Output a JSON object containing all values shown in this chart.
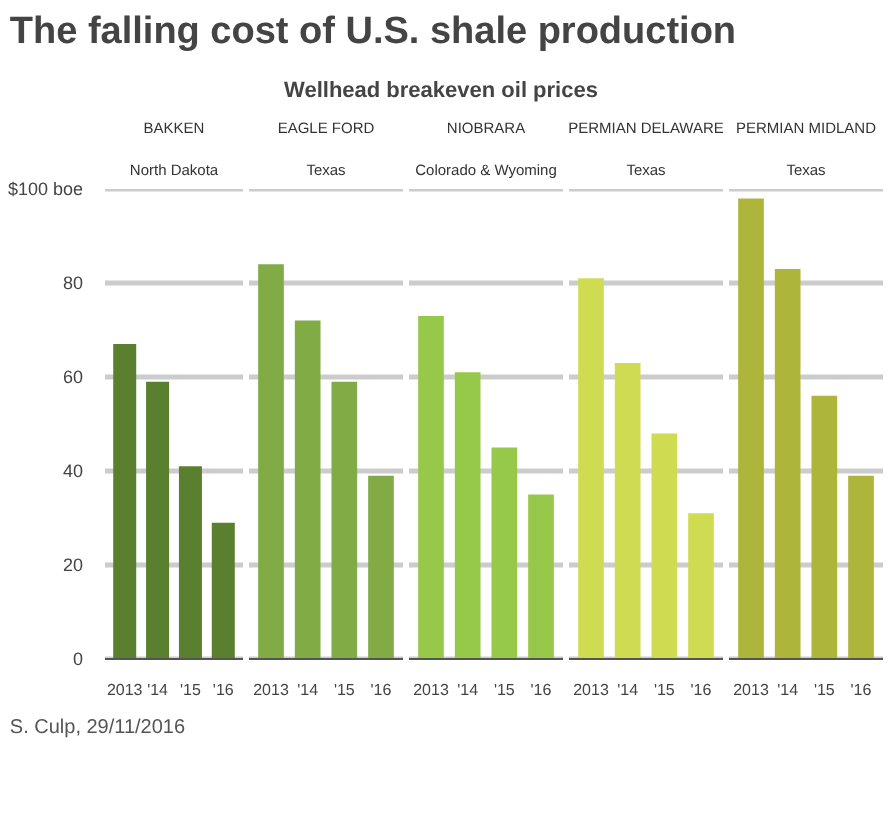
{
  "chart_data": [
    {
      "type": "other",
      "title": "The falling cost of U.S. shale production",
      "subtitle": "Wellhead breakeven oil prices",
      "annotations": [
        "S. Culp, 29/11/2016"
      ]
    },
    {
      "type": "bar",
      "title": "BAKKEN",
      "subtitle": "North Dakota",
      "categories": [
        "2013",
        "'14",
        "'15",
        "'16"
      ],
      "values": [
        67,
        59,
        41,
        29
      ],
      "color": "#5a7f2e",
      "ylim": [
        0,
        100
      ],
      "yticks": [
        0,
        20,
        40,
        60,
        80,
        {
          "value": 100,
          "label": "$100 boe"
        }
      ],
      "grid": "y"
    },
    {
      "type": "bar",
      "title": "EAGLE FORD",
      "subtitle": "Texas",
      "categories": [
        "2013",
        "'14",
        "'15",
        "'16"
      ],
      "values": [
        84,
        72,
        59,
        39
      ],
      "color": "#80ab45",
      "ylim": [
        0,
        100
      ],
      "yticks": [
        0,
        20,
        40,
        60,
        80,
        100
      ],
      "grid": "y",
      "tick_labels": "x"
    },
    {
      "type": "bar",
      "title": "NIOBRARA",
      "subtitle": "Colorado & Wyoming",
      "categories": [
        "2013",
        "'14",
        "'15",
        "'16"
      ],
      "values": [
        73,
        61,
        45,
        35
      ],
      "color": "#96c84a",
      "ylim": [
        0,
        100
      ],
      "yticks": [
        0,
        20,
        40,
        60,
        80,
        100
      ],
      "grid": "y",
      "tick_labels": "x"
    },
    {
      "type": "bar",
      "title": "PERMIAN DELAWARE",
      "subtitle": "Texas",
      "categories": [
        "2013",
        "'14",
        "'15",
        "'16"
      ],
      "values": [
        81,
        63,
        48,
        31
      ],
      "color": "#cfdc52",
      "ylim": [
        0,
        100
      ],
      "yticks": [
        0,
        20,
        40,
        60,
        80,
        100
      ],
      "grid": "y",
      "tick_labels": "x"
    },
    {
      "type": "bar",
      "title": "PERMIAN MIDLAND",
      "subtitle": "Texas",
      "categories": [
        "2013",
        "'14",
        "'15",
        "'16"
      ],
      "values": [
        98,
        83,
        56,
        39
      ],
      "color": "#adb53a",
      "ylim": [
        0,
        100
      ],
      "yticks": [
        0,
        20,
        40,
        60,
        80,
        100
      ],
      "grid": "y",
      "tick_labels": "x"
    }
  ]
}
